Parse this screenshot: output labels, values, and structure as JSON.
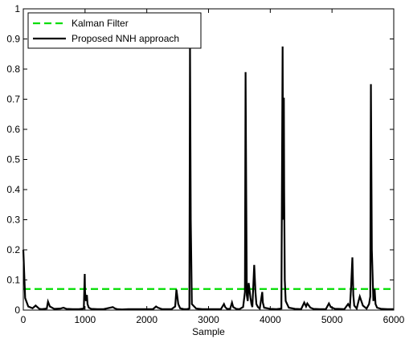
{
  "chart_data": {
    "type": "line",
    "title": "",
    "xlabel": "Sample",
    "ylabel": "",
    "xlim": [
      0,
      6000
    ],
    "ylim": [
      0,
      1
    ],
    "grid": false,
    "legend_position": "top-left",
    "x_ticks": [
      0,
      1000,
      2000,
      3000,
      4000,
      5000,
      6000
    ],
    "x_tick_labels": [
      "0",
      "1000",
      "2000",
      "3000",
      "4000",
      "5000",
      "6000"
    ],
    "y_ticks": [
      0,
      0.1,
      0.2,
      0.3,
      0.4,
      0.5,
      0.6,
      0.7,
      0.8,
      0.9,
      1
    ],
    "y_tick_labels": [
      "0",
      "0.1",
      "0.2",
      "0.3",
      "0.4",
      "0.5",
      "0.6",
      "0.7",
      "0.8",
      "0.9",
      "1"
    ],
    "series": [
      {
        "name": "Kalman Filter",
        "color": "#00dd00",
        "style": "dashed",
        "x": [
          0,
          6000
        ],
        "y": [
          0.07,
          0.07
        ]
      },
      {
        "name": "Proposed NNH approach",
        "color": "#000000",
        "style": "solid",
        "x": [
          0,
          30,
          80,
          150,
          200,
          260,
          300,
          380,
          400,
          430,
          500,
          600,
          650,
          700,
          800,
          900,
          980,
          995,
          1000,
          1015,
          1030,
          1040,
          1060,
          1100,
          1200,
          1300,
          1450,
          1480,
          1520,
          1600,
          1700,
          1800,
          1900,
          2000,
          2100,
          2150,
          2180,
          2250,
          2400,
          2460,
          2480,
          2510,
          2540,
          2600,
          2650,
          2690,
          2700,
          2712,
          2730,
          2800,
          2900,
          3000,
          3100,
          3200,
          3250,
          3270,
          3300,
          3350,
          3380,
          3400,
          3450,
          3500,
          3560,
          3590,
          3600,
          3610,
          3620,
          3635,
          3650,
          3680,
          3695,
          3710,
          3740,
          3760,
          3775,
          3800,
          3830,
          3870,
          3880,
          3900,
          4000,
          4100,
          4180,
          4200,
          4210,
          4220,
          4225,
          4235,
          4250,
          4300,
          4400,
          4500,
          4550,
          4580,
          4600,
          4650,
          4700,
          4800,
          4900,
          4950,
          4980,
          5050,
          5100,
          5200,
          5260,
          5290,
          5310,
          5330,
          5345,
          5360,
          5400,
          5430,
          5450,
          5500,
          5560,
          5600,
          5620,
          5630,
          5645,
          5670,
          5690,
          5705,
          5730,
          5800,
          5900,
          6000
        ],
        "y": [
          0.2,
          0.04,
          0.012,
          0.006,
          0.015,
          0.004,
          0.003,
          0.005,
          0.028,
          0.012,
          0.004,
          0.005,
          0.008,
          0.004,
          0.003,
          0.003,
          0.005,
          0.12,
          0.06,
          0.03,
          0.05,
          0.02,
          0.008,
          0.004,
          0.003,
          0.003,
          0.01,
          0.006,
          0.003,
          0.002,
          0.003,
          0.003,
          0.003,
          0.003,
          0.003,
          0.012,
          0.008,
          0.003,
          0.003,
          0.012,
          0.068,
          0.02,
          0.006,
          0.003,
          0.003,
          0.005,
          0.88,
          0.3,
          0.02,
          0.005,
          0.003,
          0.003,
          0.003,
          0.003,
          0.02,
          0.01,
          0.004,
          0.004,
          0.025,
          0.01,
          0.004,
          0.003,
          0.01,
          0.06,
          0.79,
          0.4,
          0.05,
          0.03,
          0.09,
          0.04,
          0.02,
          0.01,
          0.15,
          0.06,
          0.02,
          0.01,
          0.005,
          0.06,
          0.025,
          0.008,
          0.004,
          0.003,
          0.005,
          0.875,
          0.3,
          0.705,
          0.4,
          0.1,
          0.03,
          0.008,
          0.004,
          0.003,
          0.025,
          0.012,
          0.022,
          0.008,
          0.004,
          0.003,
          0.003,
          0.022,
          0.01,
          0.004,
          0.004,
          0.003,
          0.02,
          0.01,
          0.08,
          0.175,
          0.05,
          0.015,
          0.005,
          0.03,
          0.045,
          0.015,
          0.005,
          0.02,
          0.045,
          0.75,
          0.2,
          0.03,
          0.07,
          0.02,
          0.008,
          0.004,
          0.003,
          0.003
        ]
      }
    ]
  }
}
